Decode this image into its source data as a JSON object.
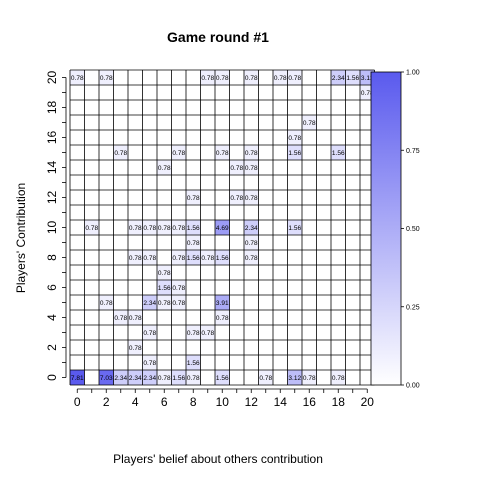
{
  "chart_data": {
    "type": "heatmap",
    "title": "Game round #1",
    "xlabel": "Players' belief about others contribution",
    "ylabel": "Players' Contribution",
    "x_range": [
      0,
      20
    ],
    "y_range": [
      0,
      20
    ],
    "x_ticks": [
      "0",
      "2",
      "4",
      "6",
      "8",
      "10",
      "12",
      "14",
      "16",
      "18",
      "20"
    ],
    "y_ticks": [
      "0",
      "2",
      "4",
      "6",
      "8",
      "10",
      "12",
      "14",
      "16",
      "18",
      "20"
    ],
    "grid": true,
    "colorbar": {
      "position": "right",
      "low_color": "#ffffff",
      "high_color": "#5a5aee",
      "ticks": [
        "0.00",
        "0.25",
        "0.50",
        "0.75",
        "1.00"
      ]
    },
    "cells": [
      {
        "x": 0,
        "y": 20,
        "label": "0.78"
      },
      {
        "x": 2,
        "y": 20,
        "label": "0.78"
      },
      {
        "x": 9,
        "y": 20,
        "label": "0.78"
      },
      {
        "x": 10,
        "y": 20,
        "label": "0.78"
      },
      {
        "x": 12,
        "y": 20,
        "label": "0.78"
      },
      {
        "x": 14,
        "y": 20,
        "label": "0.78"
      },
      {
        "x": 15,
        "y": 20,
        "label": "0.78"
      },
      {
        "x": 18,
        "y": 20,
        "label": "2.34"
      },
      {
        "x": 19,
        "y": 20,
        "label": "1.56"
      },
      {
        "x": 20,
        "y": 20,
        "label": "3.12"
      },
      {
        "x": 20,
        "y": 19,
        "label": "0.78"
      },
      {
        "x": 16,
        "y": 17,
        "label": "0.78"
      },
      {
        "x": 15,
        "y": 16,
        "label": "0.78"
      },
      {
        "x": 3,
        "y": 15,
        "label": "0.78"
      },
      {
        "x": 7,
        "y": 15,
        "label": "0.78"
      },
      {
        "x": 10,
        "y": 15,
        "label": "0.78"
      },
      {
        "x": 12,
        "y": 15,
        "label": "0.78"
      },
      {
        "x": 15,
        "y": 15,
        "label": "1.56"
      },
      {
        "x": 18,
        "y": 15,
        "label": "1.56"
      },
      {
        "x": 6,
        "y": 14,
        "label": "0.78"
      },
      {
        "x": 11,
        "y": 14,
        "label": "0.78"
      },
      {
        "x": 12,
        "y": 14,
        "label": "0.78"
      },
      {
        "x": 8,
        "y": 12,
        "label": "0.78"
      },
      {
        "x": 11,
        "y": 12,
        "label": "0.78"
      },
      {
        "x": 12,
        "y": 12,
        "label": "0.78"
      },
      {
        "x": 1,
        "y": 10,
        "label": "0.78"
      },
      {
        "x": 4,
        "y": 10,
        "label": "0.78"
      },
      {
        "x": 5,
        "y": 10,
        "label": "0.78"
      },
      {
        "x": 6,
        "y": 10,
        "label": "0.78"
      },
      {
        "x": 7,
        "y": 10,
        "label": "0.78"
      },
      {
        "x": 8,
        "y": 10,
        "label": "1.56"
      },
      {
        "x": 10,
        "y": 10,
        "label": "4.69"
      },
      {
        "x": 12,
        "y": 10,
        "label": "2.34"
      },
      {
        "x": 15,
        "y": 10,
        "label": "1.56"
      },
      {
        "x": 8,
        "y": 9,
        "label": "0.78"
      },
      {
        "x": 12,
        "y": 9,
        "label": "0.78"
      },
      {
        "x": 4,
        "y": 8,
        "label": "0.78"
      },
      {
        "x": 5,
        "y": 8,
        "label": "0.78"
      },
      {
        "x": 7,
        "y": 8,
        "label": "0.78"
      },
      {
        "x": 8,
        "y": 8,
        "label": "1.56"
      },
      {
        "x": 9,
        "y": 8,
        "label": "0.78"
      },
      {
        "x": 10,
        "y": 8,
        "label": "1.56"
      },
      {
        "x": 12,
        "y": 8,
        "label": "0.78"
      },
      {
        "x": 6,
        "y": 7,
        "label": "0.78"
      },
      {
        "x": 6,
        "y": 6,
        "label": "1.56"
      },
      {
        "x": 7,
        "y": 6,
        "label": "0.78"
      },
      {
        "x": 2,
        "y": 5,
        "label": "0.78"
      },
      {
        "x": 5,
        "y": 5,
        "label": "2.34"
      },
      {
        "x": 6,
        "y": 5,
        "label": "0.78"
      },
      {
        "x": 7,
        "y": 5,
        "label": "0.78"
      },
      {
        "x": 10,
        "y": 5,
        "label": "3.91"
      },
      {
        "x": 3,
        "y": 4,
        "label": "0.78"
      },
      {
        "x": 4,
        "y": 4,
        "label": "0.78"
      },
      {
        "x": 10,
        "y": 4,
        "label": "0.78"
      },
      {
        "x": 5,
        "y": 3,
        "label": "0.78"
      },
      {
        "x": 8,
        "y": 3,
        "label": "0.78"
      },
      {
        "x": 9,
        "y": 3,
        "label": "0.78"
      },
      {
        "x": 4,
        "y": 2,
        "label": "0.78"
      },
      {
        "x": 5,
        "y": 1,
        "label": "0.78"
      },
      {
        "x": 8,
        "y": 1,
        "label": "1.56"
      },
      {
        "x": 0,
        "y": 0,
        "label": "7.81"
      },
      {
        "x": 2,
        "y": 0,
        "label": "7.03"
      },
      {
        "x": 3,
        "y": 0,
        "label": "2.34"
      },
      {
        "x": 4,
        "y": 0,
        "label": "2.34"
      },
      {
        "x": 5,
        "y": 0,
        "label": "2.34"
      },
      {
        "x": 6,
        "y": 0,
        "label": "0.78"
      },
      {
        "x": 7,
        "y": 0,
        "label": "1.56"
      },
      {
        "x": 8,
        "y": 0,
        "label": "0.78"
      },
      {
        "x": 10,
        "y": 0,
        "label": "1.56"
      },
      {
        "x": 13,
        "y": 0,
        "label": "0.78"
      },
      {
        "x": 15,
        "y": 0,
        "label": "3.12"
      },
      {
        "x": 16,
        "y": 0,
        "label": "0.78"
      },
      {
        "x": 18,
        "y": 0,
        "label": "0.78"
      }
    ]
  }
}
